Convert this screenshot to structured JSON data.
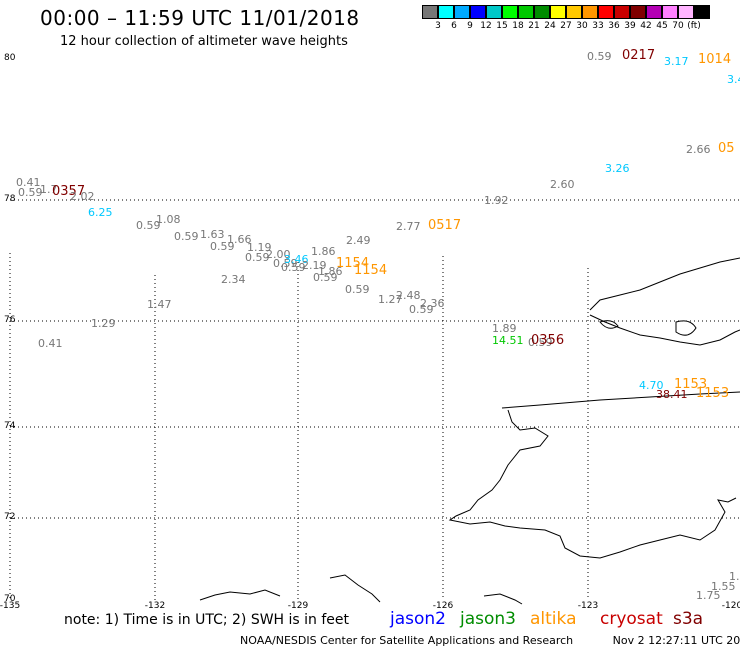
{
  "header": {
    "title": "00:00 – 11:59 UTC 11/01/2018",
    "subtitle": "12 hour collection of altimeter wave heights"
  },
  "legend": {
    "colors": [
      "#777777",
      "#00ffff",
      "#00aaff",
      "#0000ff",
      "#00c8c8",
      "#00ff00",
      "#00c800",
      "#008c00",
      "#ffff00",
      "#ffc800",
      "#ff9600",
      "#ff0000",
      "#c80000",
      "#800000",
      "#b400b4",
      "#ff80ff",
      "#ffb4ff",
      "#000000"
    ],
    "ticks": [
      "3",
      "6",
      "9",
      "12",
      "15",
      "18",
      "21",
      "24",
      "27",
      "30",
      "33",
      "36",
      "39",
      "42",
      "45",
      "70",
      "(ft)"
    ]
  },
  "axes": {
    "lat_labels": [
      "80",
      "78",
      "76",
      "74",
      "72",
      "70"
    ],
    "lon_labels": [
      "-135",
      "-132",
      "-129",
      "-126",
      "-123",
      "-120"
    ]
  },
  "wave_labels": [
    {
      "t": "0.59",
      "c": "#777777"
    },
    {
      "t": "0217",
      "c": "#800000"
    },
    {
      "t": "3.17",
      "c": "#00c8ff"
    },
    {
      "t": "1014",
      "c": "#ff9600"
    },
    {
      "t": "3.4",
      "c": "#00c8ff"
    },
    {
      "t": "2.66",
      "c": "#777777"
    },
    {
      "t": "05",
      "c": "#ff9600"
    },
    {
      "t": "3.26",
      "c": "#00c8ff"
    },
    {
      "t": "2.60",
      "c": "#777777"
    },
    {
      "t": "1.92",
      "c": "#777777"
    },
    {
      "t": "0.41",
      "c": "#777777"
    },
    {
      "t": "0.59",
      "c": "#777777"
    },
    {
      "t": "1.7",
      "c": "#777777"
    },
    {
      "t": "0357",
      "c": "#800000"
    },
    {
      "t": "2.02",
      "c": "#777777"
    },
    {
      "t": "6.25",
      "c": "#00c8ff"
    },
    {
      "t": "1.08",
      "c": "#777777"
    },
    {
      "t": "0.59",
      "c": "#777777"
    },
    {
      "t": "0.59",
      "c": "#777777"
    },
    {
      "t": "1.63",
      "c": "#777777"
    },
    {
      "t": "1.66",
      "c": "#777777"
    },
    {
      "t": "0.59",
      "c": "#777777"
    },
    {
      "t": "1.19",
      "c": "#777777"
    },
    {
      "t": "0.59",
      "c": "#777777"
    },
    {
      "t": "2.00",
      "c": "#777777"
    },
    {
      "t": "0.59",
      "c": "#777777"
    },
    {
      "t": "3.46",
      "c": "#00c8ff"
    },
    {
      "t": "0.59",
      "c": "#777777"
    },
    {
      "t": "2.19",
      "c": "#777777"
    },
    {
      "t": "1.86",
      "c": "#777777"
    },
    {
      "t": "1.86",
      "c": "#777777"
    },
    {
      "t": "0.59",
      "c": "#777777"
    },
    {
      "t": "2.49",
      "c": "#777777"
    },
    {
      "t": "2.77",
      "c": "#777777"
    },
    {
      "t": "0517",
      "c": "#ff9600"
    },
    {
      "t": "1154",
      "c": "#ff9600"
    },
    {
      "t": "1154",
      "c": "#ff9600"
    },
    {
      "t": "2.34",
      "c": "#777777"
    },
    {
      "t": "0.59",
      "c": "#777777"
    },
    {
      "t": "1.27",
      "c": "#777777"
    },
    {
      "t": "2.48",
      "c": "#777777"
    },
    {
      "t": "2.36",
      "c": "#777777"
    },
    {
      "t": "0.59",
      "c": "#777777"
    },
    {
      "t": "1.47",
      "c": "#777777"
    },
    {
      "t": "1.29",
      "c": "#777777"
    },
    {
      "t": "0.41",
      "c": "#777777"
    },
    {
      "t": "1.89",
      "c": "#777777"
    },
    {
      "t": "14.51",
      "c": "#00c800"
    },
    {
      "t": "0.59",
      "c": "#777777"
    },
    {
      "t": "0356",
      "c": "#800000"
    },
    {
      "t": "4.70",
      "c": "#00c8ff"
    },
    {
      "t": "1153",
      "c": "#ff9600"
    },
    {
      "t": "38.41",
      "c": "#800000"
    },
    {
      "t": "1153",
      "c": "#ff9600"
    },
    {
      "t": "1.75",
      "c": "#777777"
    },
    {
      "t": "1.55",
      "c": "#777777"
    },
    {
      "t": "1.",
      "c": "#777777"
    }
  ],
  "note": "note:  1) Time is in UTC;  2) SWH is in feet",
  "satellites": [
    {
      "name": "jason2",
      "color": "#0000ff"
    },
    {
      "name": "jason3",
      "color": "#008c00"
    },
    {
      "name": "altika",
      "color": "#ff9600"
    },
    {
      "name": "cryosat",
      "color": "#c80000"
    },
    {
      "name": "s3a",
      "color": "#800000"
    }
  ],
  "footer": {
    "org": "NOAA/NESDIS Center for Satellite Applications and Research",
    "timestamp": "Nov  2 12:27:11 UTC 2018"
  }
}
